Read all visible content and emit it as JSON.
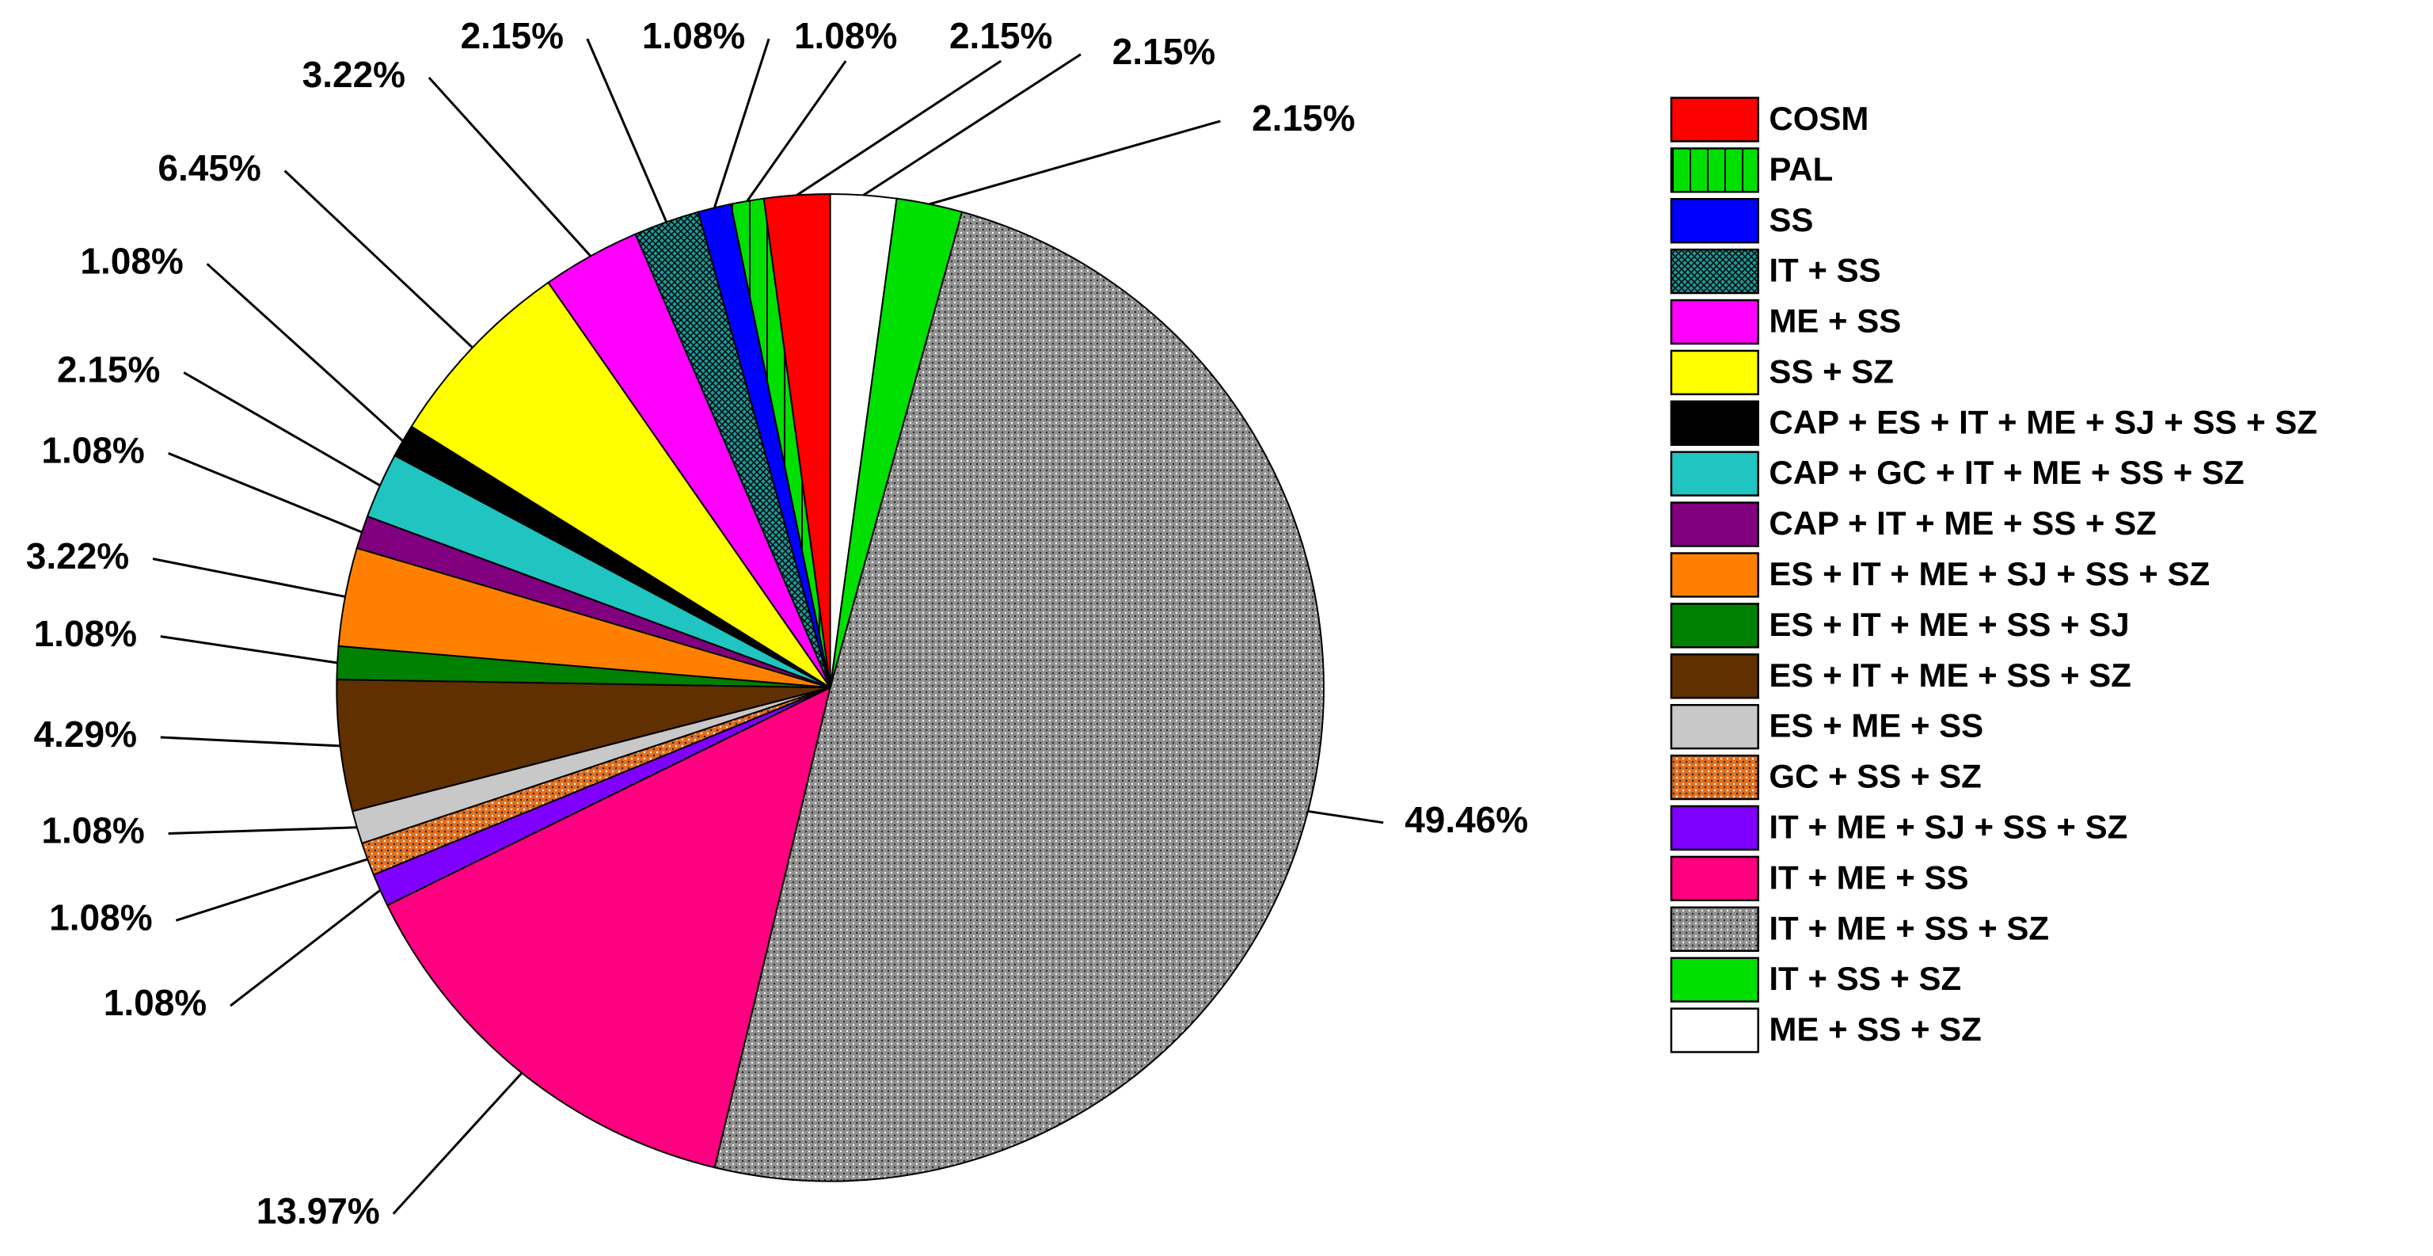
{
  "chart_data": {
    "type": "pie",
    "categories": [
      "COSM",
      "PAL",
      "SS",
      "IT + SS",
      "ME + SS",
      "SS + SZ",
      "CAP + ES + IT + ME + SJ + SS + SZ",
      "CAP + GC + IT + ME + SS + SZ",
      "CAP + IT + ME + SS + SZ",
      "ES + IT + ME + SJ + SS + SZ",
      "ES + IT + ME + SS + SJ",
      "ES + IT + ME + SS + SZ",
      "ES + ME + SS",
      "GC + SS + SZ",
      "IT + ME + SJ + SS + SZ",
      "IT + ME + SS",
      "IT + ME + SS + SZ",
      "IT + SS + SZ",
      "ME + SS + SZ"
    ],
    "values": [
      2.15,
      1.08,
      1.08,
      2.15,
      3.22,
      6.45,
      1.08,
      2.15,
      1.08,
      3.22,
      1.08,
      4.29,
      1.08,
      1.08,
      1.08,
      13.97,
      49.46,
      2.15,
      2.15
    ],
    "value_labels": [
      "2.15%",
      "1.08%",
      "1.08%",
      "2.15%",
      "3.22%",
      "6.45%",
      "1.08%",
      "2.15%",
      "1.08%",
      "3.22%",
      "1.08%",
      "4.29%",
      "1.08%",
      "1.08%",
      "1.08%",
      "13.97%",
      "49.46%",
      "2.15%",
      "2.15%"
    ],
    "colors": [
      "#ff0000",
      "#00e000",
      "#0000ff",
      "#1a9a9a",
      "#ff00ff",
      "#ffff00",
      "#000000",
      "#20c4c0",
      "#800080",
      "#ff8000",
      "#008000",
      "#603000",
      "#c8c8c8",
      "#e07020",
      "#8000ff",
      "#ff0080",
      "#909090",
      "#00e000",
      "#ffffff"
    ]
  }
}
